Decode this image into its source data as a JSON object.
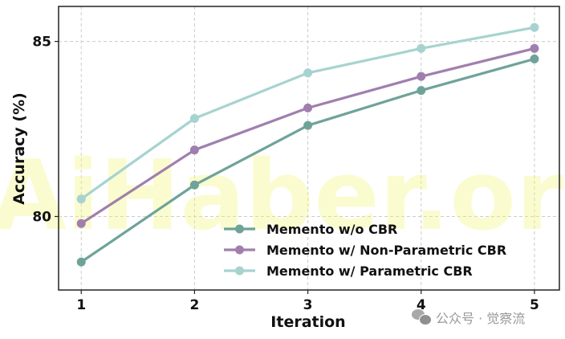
{
  "chart_data": {
    "type": "line",
    "title": "",
    "xlabel": "Iteration",
    "ylabel": "Accuracy (%)",
    "x": [
      1,
      2,
      3,
      4,
      5
    ],
    "xticks": [
      "1",
      "2",
      "3",
      "4",
      "5"
    ],
    "yticks": [
      "80",
      "85"
    ],
    "ytick_values": [
      80,
      85
    ],
    "xlim": [
      0.8,
      5.22
    ],
    "ylim": [
      77.9,
      86.0
    ],
    "grid": true,
    "legend_position": "lower right",
    "series": [
      {
        "name": "Memento w/o CBR",
        "color": "#6fa39a",
        "values": [
          78.7,
          80.9,
          82.6,
          83.6,
          84.5
        ]
      },
      {
        "name": "Memento w/ Non-Parametric CBR",
        "color": "#a07fae",
        "values": [
          79.8,
          81.9,
          83.1,
          84.0,
          84.8
        ]
      },
      {
        "name": "Memento w/ Parametric CBR",
        "color": "#a6d3d0",
        "values": [
          80.5,
          82.8,
          84.1,
          84.8,
          85.4
        ]
      }
    ]
  },
  "watermark": {
    "text": "AiHaber.org"
  },
  "footer": {
    "source_label": "公众号 · 觉察流"
  }
}
